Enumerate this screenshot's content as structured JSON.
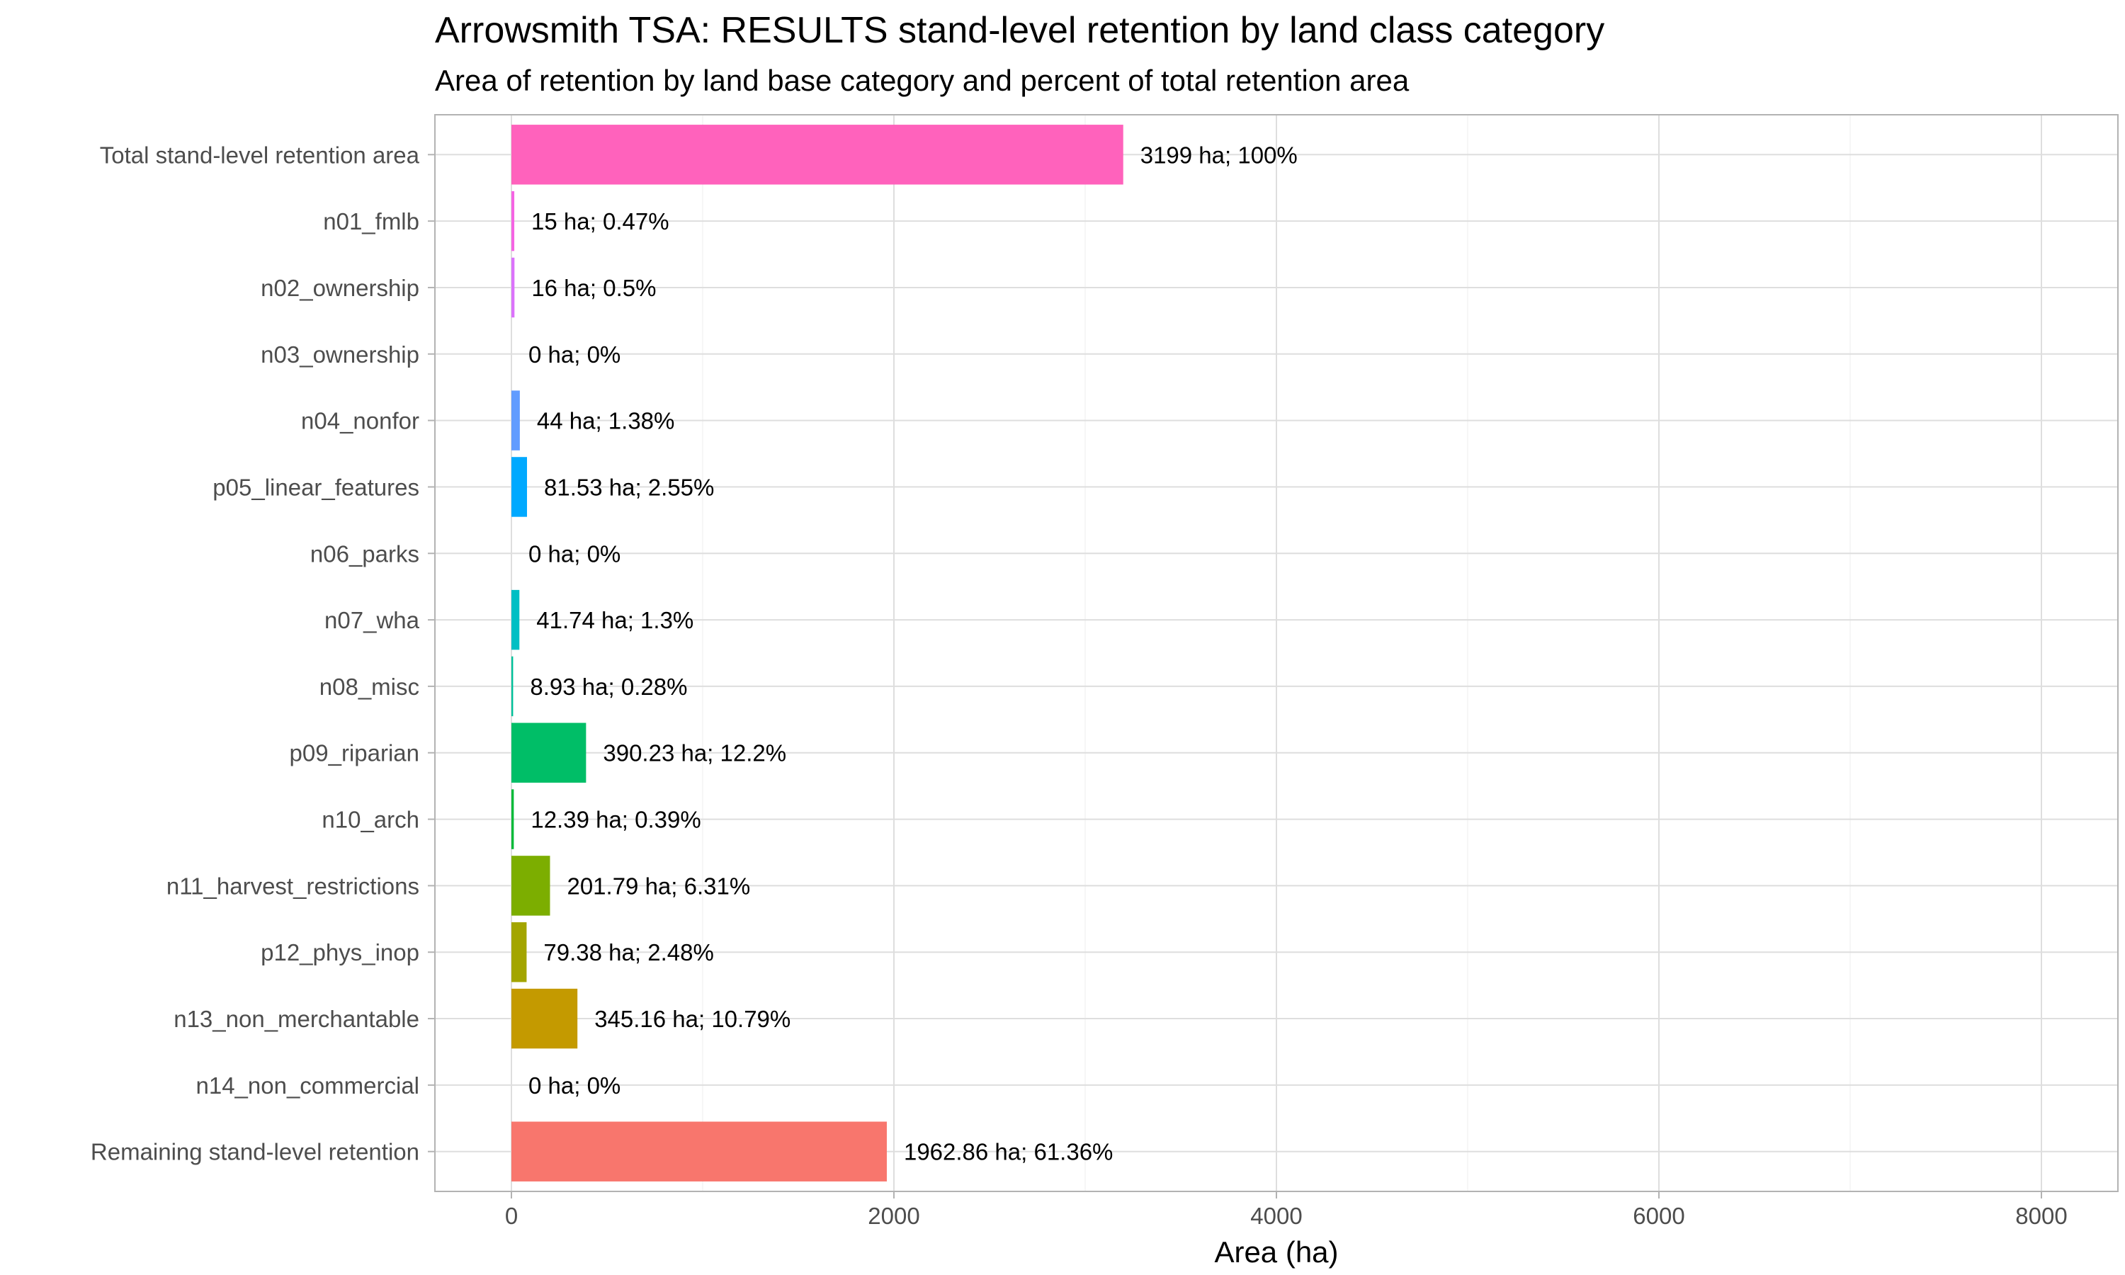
{
  "chart_data": {
    "type": "bar",
    "orientation": "horizontal",
    "title": "Arrowsmith TSA: RESULTS stand-level retention by land class category",
    "subtitle": "Area of retention by land base category and percent of total retention area",
    "xlabel": "Area (ha)",
    "ylabel": "",
    "xlim": [
      -400,
      8400
    ],
    "xticks": [
      0,
      2000,
      4000,
      6000,
      8000
    ],
    "grid": true,
    "legend": "none",
    "categories": [
      "Total stand-level retention area",
      "n01_fmlb",
      "n02_ownership",
      "n03_ownership",
      "n04_nonfor",
      "p05_linear_features",
      "n06_parks",
      "n07_wha",
      "n08_misc",
      "p09_riparian",
      "n10_arch",
      "n11_harvest_restrictions",
      "p12_phys_inop",
      "n13_non_merchantable",
      "n14_non_commercial",
      "Remaining stand-level retention"
    ],
    "values": [
      3199,
      15,
      16,
      0,
      44,
      81.53,
      0,
      41.74,
      8.93,
      390.23,
      12.39,
      201.79,
      79.38,
      345.16,
      0,
      1962.86
    ],
    "data_labels": [
      "3199 ha; 100%",
      "15 ha; 0.47%",
      "16 ha; 0.5%",
      "0 ha; 0%",
      "44 ha; 1.38%",
      "81.53 ha; 2.55%",
      "0 ha; 0%",
      "41.74 ha; 1.3%",
      "8.93 ha; 0.28%",
      "390.23 ha; 12.2%",
      "12.39 ha; 0.39%",
      "201.79 ha; 6.31%",
      "79.38 ha; 2.48%",
      "345.16 ha; 10.79%",
      "0 ha; 0%",
      "1962.86 ha; 61.36%"
    ],
    "colors": [
      "#FF62BC",
      "#F564E3",
      "#DB72FB",
      "#B385FF",
      "#619CFF",
      "#00A9FF",
      "#00B8E7",
      "#00BFC4",
      "#00C19A",
      "#00BE67",
      "#00BA38",
      "#7CAE00",
      "#A3A500",
      "#C49A00",
      "#E58700",
      "#F8766D"
    ]
  }
}
